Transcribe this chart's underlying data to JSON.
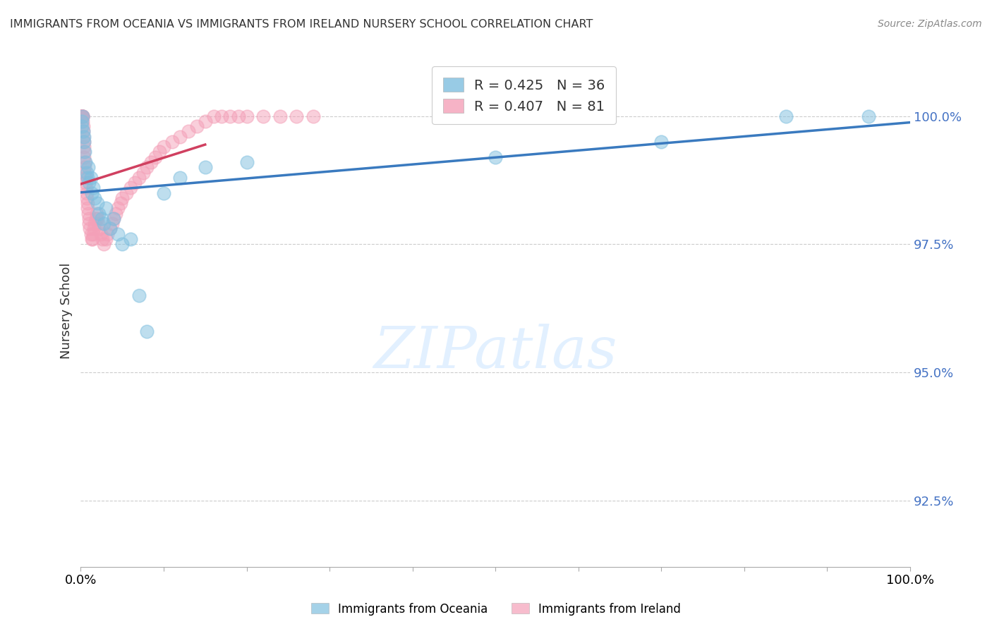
{
  "title": "IMMIGRANTS FROM OCEANIA VS IMMIGRANTS FROM IRELAND NURSERY SCHOOL CORRELATION CHART",
  "source": "Source: ZipAtlas.com",
  "ylabel": "Nursery School",
  "y_ticks": [
    92.5,
    95.0,
    97.5,
    100.0
  ],
  "y_tick_labels": [
    "92.5%",
    "95.0%",
    "97.5%",
    "100.0%"
  ],
  "x_range": [
    0.0,
    100.0
  ],
  "y_range": [
    91.2,
    101.2
  ],
  "oceania_R": 0.425,
  "oceania_N": 36,
  "ireland_R": 0.407,
  "ireland_N": 81,
  "oceania_color": "#7fbfdf",
  "ireland_color": "#f4a0b8",
  "oceania_line_color": "#3a7abf",
  "ireland_line_color": "#d04060",
  "legend_oceania": "Immigrants from Oceania",
  "legend_ireland": "Immigrants from Ireland",
  "oceania_x": [
    0.1,
    0.15,
    0.2,
    0.3,
    0.35,
    0.4,
    0.5,
    0.6,
    0.7,
    0.8,
    0.9,
    1.0,
    1.2,
    1.3,
    1.5,
    1.7,
    2.0,
    2.2,
    2.5,
    2.8,
    3.0,
    3.5,
    4.0,
    4.5,
    5.0,
    6.0,
    7.0,
    8.0,
    10.0,
    12.0,
    15.0,
    20.0,
    50.0,
    70.0,
    85.0,
    95.0
  ],
  "oceania_y": [
    99.9,
    99.8,
    100.0,
    99.7,
    99.6,
    99.5,
    99.3,
    99.1,
    98.9,
    98.8,
    99.0,
    98.7,
    98.8,
    98.5,
    98.6,
    98.4,
    98.3,
    98.1,
    98.0,
    97.9,
    98.2,
    97.8,
    98.0,
    97.7,
    97.5,
    97.6,
    96.5,
    95.8,
    98.5,
    98.8,
    99.0,
    99.1,
    99.2,
    99.5,
    100.0,
    100.0
  ],
  "ireland_x": [
    0.02,
    0.04,
    0.06,
    0.08,
    0.1,
    0.12,
    0.14,
    0.16,
    0.18,
    0.2,
    0.22,
    0.24,
    0.26,
    0.28,
    0.3,
    0.32,
    0.35,
    0.38,
    0.4,
    0.42,
    0.45,
    0.48,
    0.5,
    0.55,
    0.6,
    0.65,
    0.7,
    0.75,
    0.8,
    0.85,
    0.9,
    0.95,
    1.0,
    1.1,
    1.2,
    1.3,
    1.4,
    1.5,
    1.6,
    1.7,
    1.8,
    1.9,
    2.0,
    2.1,
    2.2,
    2.4,
    2.6,
    2.8,
    3.0,
    3.2,
    3.5,
    3.8,
    4.0,
    4.2,
    4.5,
    4.8,
    5.0,
    5.5,
    6.0,
    6.5,
    7.0,
    7.5,
    8.0,
    8.5,
    9.0,
    9.5,
    10.0,
    11.0,
    12.0,
    13.0,
    14.0,
    15.0,
    16.0,
    17.0,
    18.0,
    19.0,
    20.0,
    22.0,
    24.0,
    26.0,
    28.0
  ],
  "ireland_y": [
    100.0,
    100.0,
    100.0,
    100.0,
    100.0,
    100.0,
    100.0,
    100.0,
    100.0,
    100.0,
    100.0,
    100.0,
    99.9,
    99.8,
    99.7,
    99.6,
    99.5,
    99.4,
    99.3,
    99.2,
    99.1,
    99.0,
    98.9,
    98.8,
    98.7,
    98.6,
    98.5,
    98.4,
    98.3,
    98.2,
    98.1,
    98.0,
    97.9,
    97.8,
    97.7,
    97.6,
    97.6,
    97.7,
    97.8,
    97.9,
    98.0,
    98.1,
    98.0,
    97.9,
    97.8,
    97.7,
    97.6,
    97.5,
    97.6,
    97.7,
    97.8,
    97.9,
    98.0,
    98.1,
    98.2,
    98.3,
    98.4,
    98.5,
    98.6,
    98.7,
    98.8,
    98.9,
    99.0,
    99.1,
    99.2,
    99.3,
    99.4,
    99.5,
    99.6,
    99.7,
    99.8,
    99.9,
    100.0,
    100.0,
    100.0,
    100.0,
    100.0,
    100.0,
    100.0,
    100.0,
    100.0
  ]
}
